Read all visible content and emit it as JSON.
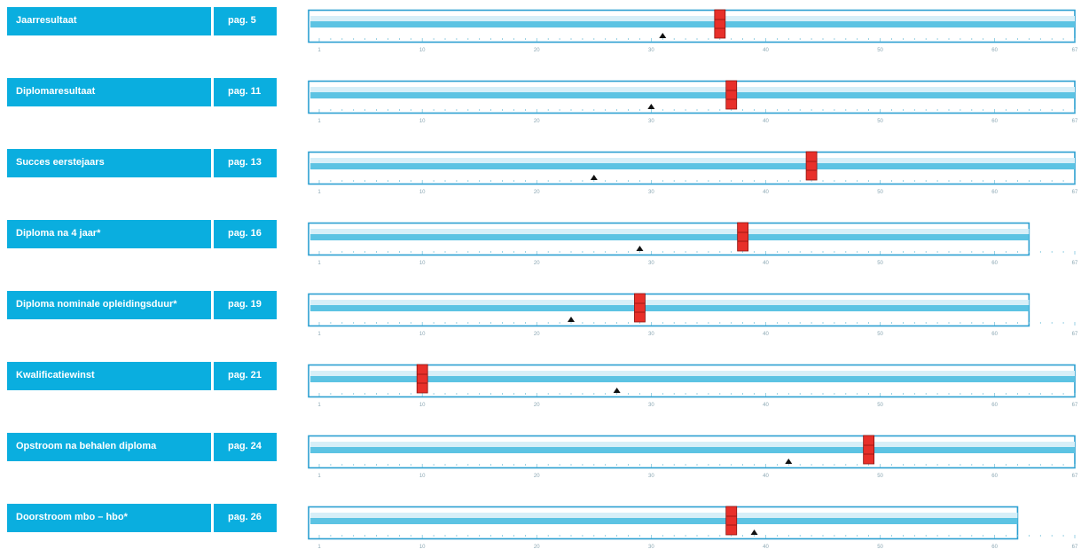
{
  "rows": [
    {
      "label": "Jaarresultaat",
      "page": "pag. 5"
    },
    {
      "label": "Diplomaresultaat",
      "page": "pag. 11"
    },
    {
      "label": "Succes eerstejaars",
      "page": "pag. 13"
    },
    {
      "label": "Diploma na 4 jaar*",
      "page": "pag. 16"
    },
    {
      "label": "Diploma nominale opleidingsduur*",
      "page": "pag. 19"
    },
    {
      "label": "Kwalificatiewinst",
      "page": "pag. 21"
    },
    {
      "label": "Opstroom na behalen diploma",
      "page": "pag. 24"
    },
    {
      "label": "Doorstroom mbo – hbo*",
      "page": "pag. 26"
    }
  ],
  "chart_data": {
    "type": "bar",
    "x_ticks": [
      "1",
      "10",
      "20",
      "30",
      "40",
      "50",
      "60",
      "67"
    ],
    "xlim": [
      1,
      67
    ],
    "colors": {
      "band": "#5cc3e3",
      "frame": "#2b9fd1",
      "marker": "#e8302a",
      "triangle": "#111111",
      "tick": "#6fbfd9"
    },
    "series": [
      {
        "values": [
          67,
          67,
          67,
          63,
          63,
          67,
          67,
          62
        ]
      },
      {
        "values": [
          36,
          37,
          44,
          38,
          29,
          10,
          49,
          37
        ]
      },
      {
        "values": [
          31,
          30,
          25,
          29,
          23,
          27,
          42,
          39
        ]
      }
    ]
  }
}
